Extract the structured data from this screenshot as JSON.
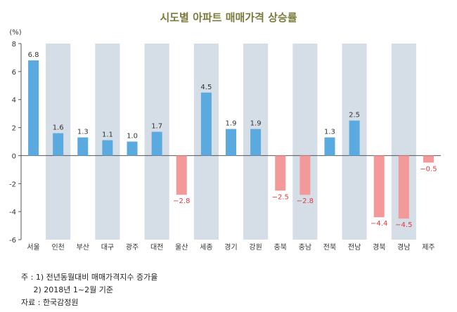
{
  "chart_data": {
    "type": "bar",
    "title": "시도별 아파트 매매가격 상승률",
    "ylabel": "(%)",
    "xlabel": "",
    "ylim": [
      -6,
      8
    ],
    "yticks": [
      8,
      6,
      4,
      2,
      0,
      -2,
      -4,
      -6
    ],
    "categories": [
      "서울",
      "인천",
      "부산",
      "대구",
      "광주",
      "대전",
      "울산",
      "세종",
      "경기",
      "강원",
      "충북",
      "충남",
      "전북",
      "전남",
      "경북",
      "경남",
      "제주"
    ],
    "values": [
      6.8,
      1.6,
      1.3,
      1.1,
      1.0,
      1.7,
      -2.8,
      4.5,
      1.9,
      1.9,
      -2.5,
      -2.8,
      1.3,
      2.5,
      -4.4,
      -4.5,
      -0.5
    ],
    "value_labels": [
      "6.8",
      "1.6",
      "1.3",
      "1.1",
      "1.0",
      "1.7",
      "−2.8",
      "4.5",
      "1.9",
      "1.9",
      "−2.5",
      "−2.8",
      "1.3",
      "2.5",
      "−4.4",
      "−4.5",
      "−0.5"
    ],
    "colors": {
      "positive": "#5aaae0",
      "negative": "#f4999a",
      "band": "#d5dde6",
      "negative_label": "#e0393e",
      "title": "#7a7a3c"
    },
    "grid": false,
    "legend": "none"
  },
  "notes": {
    "line1": "주 : 1) 전년동월대비 매매가격지수 증가율",
    "line2": "     2) 2018년 1~2월 기준",
    "line3": "자료 : 한국감정원"
  }
}
